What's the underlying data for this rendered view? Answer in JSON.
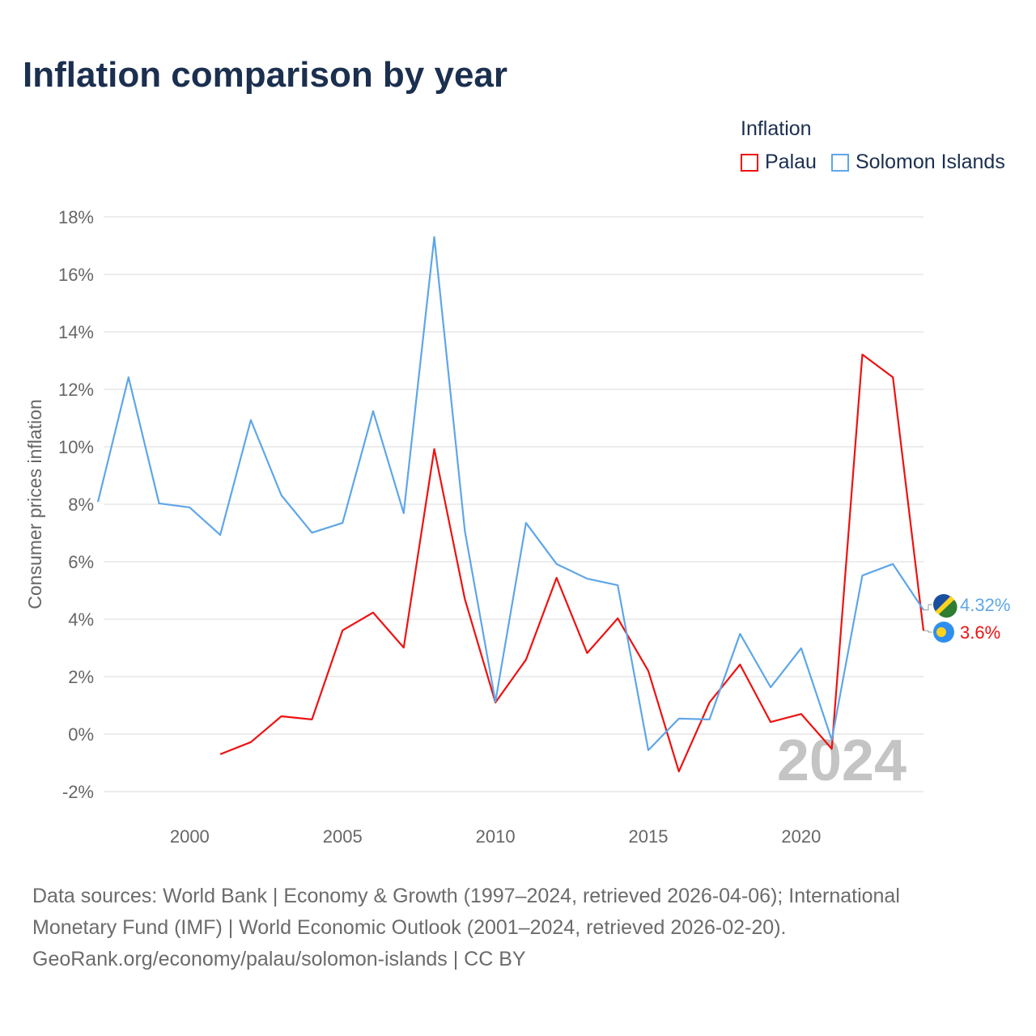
{
  "title": "Inflation comparison by year",
  "legend": {
    "title": "Inflation",
    "items": [
      {
        "label": "Palau",
        "color": "#ee1111"
      },
      {
        "label": "Solomon Islands",
        "color": "#5ea6e8"
      }
    ]
  },
  "watermark_year": "2024",
  "footer": {
    "line1": "Data sources: World Bank | Economy & Growth (1997–2024, retrieved 2026-04-06); International",
    "line2": "Monetary Fund (IMF) | World Economic Outlook (2001–2024, retrieved 2026-02-20).",
    "line3": "GeoRank.org/economy/palau/solomon-islands | CC BY"
  },
  "chart_data": {
    "type": "line",
    "title": "Inflation comparison by year",
    "xlabel": "",
    "ylabel": "Consumer prices inflation",
    "xlim": [
      1997,
      2024
    ],
    "ylim": [
      -2,
      18
    ],
    "x_ticks": [
      2000,
      2005,
      2010,
      2015,
      2020
    ],
    "x_tick_labels": [
      "2000",
      "2005",
      "2010",
      "2015",
      "2020"
    ],
    "y_ticks": [
      -2,
      0,
      2,
      4,
      6,
      8,
      10,
      12,
      14,
      16,
      18
    ],
    "y_tick_labels": [
      "-2%",
      "0%",
      "2%",
      "4%",
      "6%",
      "8%",
      "10%",
      "12%",
      "14%",
      "16%",
      "18%"
    ],
    "grid": true,
    "legend_position": "top-right",
    "series": [
      {
        "name": "Palau",
        "color": "#ee1111",
        "end_label": "3.6%",
        "x": [
          2001,
          2002,
          2003,
          2004,
          2005,
          2006,
          2007,
          2008,
          2009,
          2010,
          2011,
          2012,
          2013,
          2014,
          2015,
          2016,
          2017,
          2018,
          2019,
          2020,
          2021,
          2022,
          2023,
          2024
        ],
        "values": [
          -0.7,
          -0.28,
          0.62,
          0.51,
          3.61,
          4.23,
          3.01,
          9.92,
          4.7,
          1.1,
          2.59,
          5.44,
          2.82,
          4.03,
          2.2,
          -1.3,
          1.1,
          2.42,
          0.42,
          0.7,
          -0.51,
          13.21,
          12.42,
          3.6
        ]
      },
      {
        "name": "Solomon Islands",
        "color": "#5ea6e8",
        "end_label": "4.32%",
        "x": [
          1997,
          1998,
          1999,
          2000,
          2001,
          2002,
          2003,
          2004,
          2005,
          2006,
          2007,
          2008,
          2009,
          2010,
          2011,
          2012,
          2013,
          2014,
          2015,
          2016,
          2017,
          2018,
          2019,
          2020,
          2021,
          2022,
          2023,
          2024
        ],
        "values": [
          8.08,
          12.42,
          8.03,
          7.89,
          6.93,
          10.93,
          8.31,
          7.01,
          7.35,
          11.24,
          7.69,
          17.3,
          7.07,
          1.13,
          7.35,
          5.92,
          5.41,
          5.18,
          -0.56,
          0.54,
          0.51,
          3.49,
          1.63,
          2.99,
          -0.2,
          5.52,
          5.92,
          4.32
        ]
      }
    ]
  }
}
